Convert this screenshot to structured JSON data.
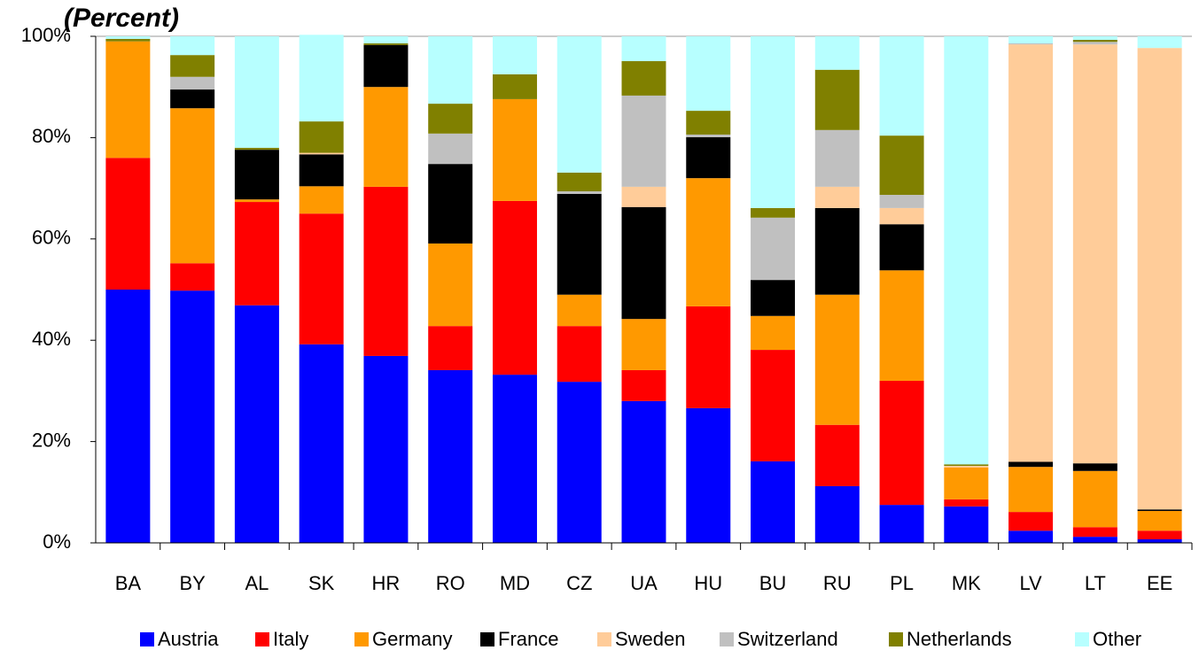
{
  "chart_data": {
    "type": "stacked_bar",
    "title": "(Percent)",
    "categories": [
      "BA",
      "BY",
      "AL",
      "SK",
      "HR",
      "RO",
      "MD",
      "CZ",
      "UA",
      "HU",
      "BU",
      "RU",
      "PL",
      "MK",
      "LV",
      "LT",
      "EE"
    ],
    "series": [
      {
        "name": "Austria",
        "color": "#0000ff",
        "values": [
          50.0,
          49.8,
          46.9,
          39.2,
          36.9,
          34.1,
          33.2,
          31.8,
          28.0,
          26.6,
          16.1,
          11.2,
          7.5,
          7.2,
          2.4,
          1.2,
          0.7
        ]
      },
      {
        "name": "Italy",
        "color": "#ff0000",
        "values": [
          26.0,
          5.4,
          20.4,
          25.8,
          33.4,
          8.7,
          34.3,
          11.0,
          6.1,
          20.1,
          22.0,
          12.1,
          24.5,
          1.4,
          3.7,
          1.9,
          1.7
        ]
      },
      {
        "name": "Germany",
        "color": "#ff9900",
        "values": [
          23.0,
          30.6,
          0.5,
          5.4,
          19.7,
          16.3,
          20.1,
          6.2,
          10.1,
          25.3,
          6.7,
          25.7,
          21.8,
          6.3,
          8.9,
          11.1,
          3.9
        ]
      },
      {
        "name": "France",
        "color": "#000000",
        "values": [
          0,
          3.7,
          9.8,
          6.3,
          8.3,
          15.7,
          0,
          19.9,
          22.1,
          8.1,
          7.1,
          17.1,
          9.1,
          0,
          1.0,
          1.5,
          0.3
        ]
      },
      {
        "name": "Sweden",
        "color": "#ffcc99",
        "values": [
          0,
          0,
          0,
          0.3,
          0,
          0,
          0,
          0,
          4.0,
          0,
          0,
          4.2,
          3.2,
          0.3,
          82.4,
          82.7,
          91.1
        ]
      },
      {
        "name": "Switzerland",
        "color": "#c0c0c0",
        "values": [
          0,
          2.5,
          0,
          0,
          0,
          6.0,
          0,
          0.5,
          18.0,
          0.5,
          12.3,
          11.2,
          2.6,
          0,
          0.2,
          0.5,
          0
        ]
      },
      {
        "name": "Netherlands",
        "color": "#808000",
        "values": [
          0.5,
          4.3,
          0.4,
          6.2,
          0.3,
          5.9,
          4.9,
          3.7,
          6.8,
          4.7,
          1.9,
          11.9,
          11.7,
          0.3,
          0,
          0.4,
          0
        ]
      },
      {
        "name": "Other",
        "color": "#b7ffff",
        "values": [
          0.5,
          3.7,
          22.0,
          17.1,
          1.4,
          13.3,
          7.5,
          26.9,
          4.9,
          14.7,
          33.9,
          6.6,
          19.6,
          84.5,
          1.4,
          0.7,
          2.3
        ]
      }
    ],
    "ylim": [
      0,
      100
    ],
    "yticks": [
      {
        "value": 0,
        "label": "0%"
      },
      {
        "value": 20,
        "label": "20%"
      },
      {
        "value": 40,
        "label": "40%"
      },
      {
        "value": 60,
        "label": "60%"
      },
      {
        "value": 80,
        "label": "80%"
      },
      {
        "value": 100,
        "label": "100%"
      }
    ],
    "legend": "bottom"
  }
}
